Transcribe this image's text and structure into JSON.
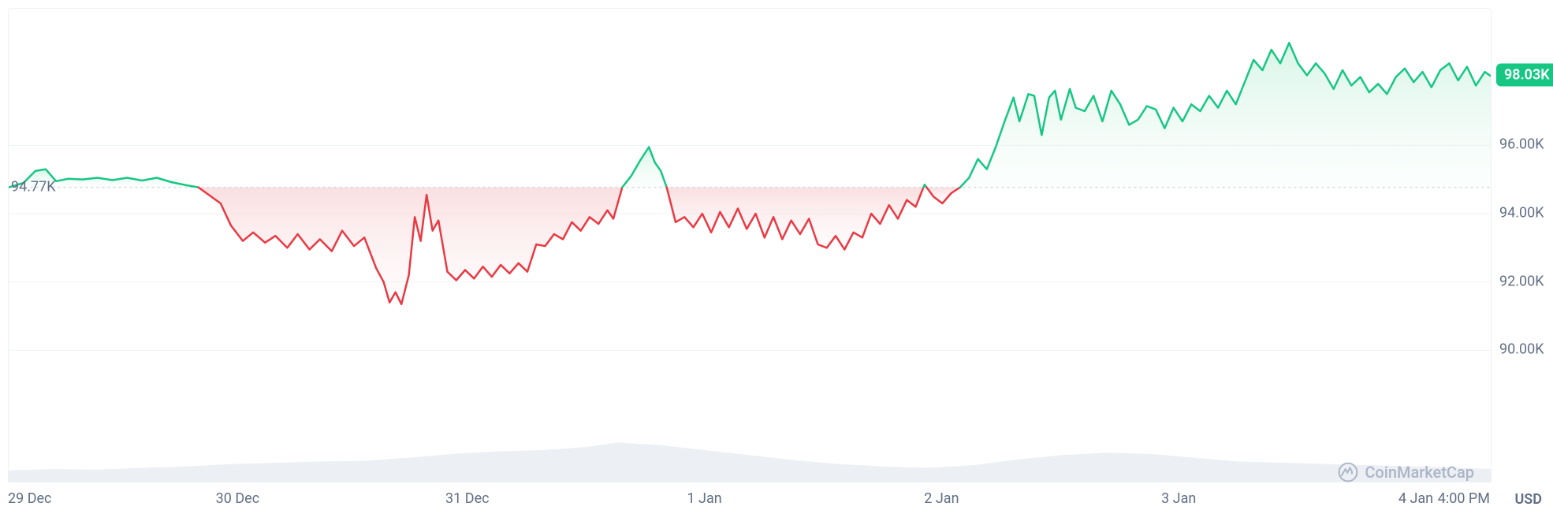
{
  "chart": {
    "type": "area-line",
    "currency_label": "USD",
    "watermark_text": "CoinMarketCap",
    "background_color": "#ffffff",
    "plot_border_color": "#eef0f4",
    "grid_color": "#eff2f5",
    "baseline_dot_color": "#cfd6e4",
    "up_line_color": "#16c784",
    "up_fill_top": "#c7f0dd",
    "up_fill_bottom": "#eefbf4",
    "down_line_color": "#ea3943",
    "down_fill_top": "#f8d2d4",
    "down_fill_bottom": "#fdf1f2",
    "volume_fill": "#eceff4",
    "text_color": "#616e85",
    "line_width": 2.5,
    "y_axis": {
      "min": 88000,
      "max": 100000,
      "ticks": [
        90000,
        92000,
        94000,
        96000
      ],
      "tick_labels": [
        "90.00K",
        "92.00K",
        "94.00K",
        "96.00K"
      ]
    },
    "x_axis": {
      "ticks_t": [
        0,
        0.155,
        0.31,
        0.47,
        0.63,
        0.79,
        0.95,
        1.0
      ],
      "tick_labels": [
        "29 Dec",
        "30 Dec",
        "31 Dec",
        "1 Jan",
        "2 Jan",
        "3 Jan",
        "4 Jan",
        "4:00 PM"
      ]
    },
    "baseline_value": 94770,
    "start_label": "94.77K",
    "end_label": "98.03K",
    "end_value": 98030,
    "price_series": [
      [
        0.0,
        94770
      ],
      [
        0.01,
        94900
      ],
      [
        0.018,
        95250
      ],
      [
        0.025,
        95300
      ],
      [
        0.032,
        94950
      ],
      [
        0.04,
        95020
      ],
      [
        0.05,
        95000
      ],
      [
        0.06,
        95050
      ],
      [
        0.07,
        94980
      ],
      [
        0.08,
        95050
      ],
      [
        0.09,
        94970
      ],
      [
        0.1,
        95050
      ],
      [
        0.11,
        94920
      ],
      [
        0.12,
        94830
      ],
      [
        0.128,
        94770
      ],
      [
        0.135,
        94550
      ],
      [
        0.143,
        94300
      ],
      [
        0.15,
        93650
      ],
      [
        0.158,
        93200
      ],
      [
        0.165,
        93450
      ],
      [
        0.173,
        93150
      ],
      [
        0.18,
        93350
      ],
      [
        0.188,
        93000
      ],
      [
        0.195,
        93400
      ],
      [
        0.203,
        92950
      ],
      [
        0.21,
        93250
      ],
      [
        0.218,
        92900
      ],
      [
        0.225,
        93500
      ],
      [
        0.233,
        93050
      ],
      [
        0.24,
        93300
      ],
      [
        0.248,
        92400
      ],
      [
        0.253,
        92000
      ],
      [
        0.257,
        91400
      ],
      [
        0.261,
        91700
      ],
      [
        0.265,
        91350
      ],
      [
        0.27,
        92200
      ],
      [
        0.274,
        93900
      ],
      [
        0.278,
        93200
      ],
      [
        0.282,
        94550
      ],
      [
        0.286,
        93500
      ],
      [
        0.29,
        93800
      ],
      [
        0.296,
        92300
      ],
      [
        0.302,
        92050
      ],
      [
        0.308,
        92350
      ],
      [
        0.314,
        92100
      ],
      [
        0.32,
        92450
      ],
      [
        0.326,
        92150
      ],
      [
        0.332,
        92500
      ],
      [
        0.338,
        92250
      ],
      [
        0.344,
        92550
      ],
      [
        0.35,
        92300
      ],
      [
        0.356,
        93100
      ],
      [
        0.362,
        93050
      ],
      [
        0.368,
        93400
      ],
      [
        0.374,
        93250
      ],
      [
        0.38,
        93750
      ],
      [
        0.386,
        93500
      ],
      [
        0.392,
        93900
      ],
      [
        0.398,
        93700
      ],
      [
        0.404,
        94100
      ],
      [
        0.408,
        93850
      ],
      [
        0.414,
        94770
      ],
      [
        0.42,
        95100
      ],
      [
        0.426,
        95550
      ],
      [
        0.432,
        95950
      ],
      [
        0.436,
        95500
      ],
      [
        0.44,
        95250
      ],
      [
        0.444,
        94770
      ],
      [
        0.45,
        93750
      ],
      [
        0.456,
        93900
      ],
      [
        0.462,
        93600
      ],
      [
        0.468,
        94000
      ],
      [
        0.474,
        93450
      ],
      [
        0.48,
        94050
      ],
      [
        0.486,
        93600
      ],
      [
        0.492,
        94150
      ],
      [
        0.498,
        93550
      ],
      [
        0.504,
        94000
      ],
      [
        0.51,
        93300
      ],
      [
        0.516,
        93900
      ],
      [
        0.522,
        93250
      ],
      [
        0.528,
        93800
      ],
      [
        0.534,
        93400
      ],
      [
        0.54,
        93850
      ],
      [
        0.546,
        93100
      ],
      [
        0.552,
        93000
      ],
      [
        0.558,
        93350
      ],
      [
        0.564,
        92950
      ],
      [
        0.57,
        93450
      ],
      [
        0.576,
        93300
      ],
      [
        0.582,
        94000
      ],
      [
        0.588,
        93700
      ],
      [
        0.594,
        94250
      ],
      [
        0.6,
        93850
      ],
      [
        0.606,
        94400
      ],
      [
        0.612,
        94200
      ],
      [
        0.618,
        94850
      ],
      [
        0.624,
        94500
      ],
      [
        0.63,
        94300
      ],
      [
        0.636,
        94600
      ],
      [
        0.642,
        94770
      ],
      [
        0.648,
        95050
      ],
      [
        0.654,
        95600
      ],
      [
        0.66,
        95300
      ],
      [
        0.666,
        95950
      ],
      [
        0.672,
        96700
      ],
      [
        0.678,
        97400
      ],
      [
        0.682,
        96700
      ],
      [
        0.688,
        97500
      ],
      [
        0.692,
        97450
      ],
      [
        0.697,
        96300
      ],
      [
        0.702,
        97400
      ],
      [
        0.706,
        97600
      ],
      [
        0.71,
        96750
      ],
      [
        0.716,
        97650
      ],
      [
        0.72,
        97100
      ],
      [
        0.726,
        97000
      ],
      [
        0.732,
        97450
      ],
      [
        0.738,
        96700
      ],
      [
        0.744,
        97600
      ],
      [
        0.75,
        97200
      ],
      [
        0.756,
        96600
      ],
      [
        0.762,
        96750
      ],
      [
        0.768,
        97150
      ],
      [
        0.774,
        97050
      ],
      [
        0.78,
        96500
      ],
      [
        0.786,
        97100
      ],
      [
        0.792,
        96700
      ],
      [
        0.798,
        97200
      ],
      [
        0.804,
        97000
      ],
      [
        0.81,
        97450
      ],
      [
        0.816,
        97100
      ],
      [
        0.822,
        97600
      ],
      [
        0.828,
        97200
      ],
      [
        0.834,
        97850
      ],
      [
        0.84,
        98500
      ],
      [
        0.846,
        98200
      ],
      [
        0.852,
        98800
      ],
      [
        0.858,
        98400
      ],
      [
        0.864,
        99000
      ],
      [
        0.87,
        98400
      ],
      [
        0.876,
        98050
      ],
      [
        0.882,
        98400
      ],
      [
        0.888,
        98100
      ],
      [
        0.894,
        97650
      ],
      [
        0.9,
        98200
      ],
      [
        0.906,
        97750
      ],
      [
        0.912,
        98000
      ],
      [
        0.918,
        97550
      ],
      [
        0.924,
        97800
      ],
      [
        0.93,
        97500
      ],
      [
        0.936,
        98000
      ],
      [
        0.942,
        98250
      ],
      [
        0.948,
        97850
      ],
      [
        0.954,
        98150
      ],
      [
        0.96,
        97700
      ],
      [
        0.966,
        98200
      ],
      [
        0.972,
        98400
      ],
      [
        0.978,
        97900
      ],
      [
        0.984,
        98300
      ],
      [
        0.99,
        97750
      ],
      [
        0.996,
        98150
      ],
      [
        1.0,
        98030
      ]
    ],
    "volume_series": [
      [
        0.0,
        0.18
      ],
      [
        0.03,
        0.2
      ],
      [
        0.06,
        0.19
      ],
      [
        0.09,
        0.22
      ],
      [
        0.12,
        0.24
      ],
      [
        0.15,
        0.28
      ],
      [
        0.18,
        0.3
      ],
      [
        0.21,
        0.32
      ],
      [
        0.24,
        0.33
      ],
      [
        0.27,
        0.38
      ],
      [
        0.3,
        0.44
      ],
      [
        0.33,
        0.48
      ],
      [
        0.36,
        0.5
      ],
      [
        0.39,
        0.55
      ],
      [
        0.41,
        0.62
      ],
      [
        0.44,
        0.58
      ],
      [
        0.47,
        0.5
      ],
      [
        0.5,
        0.42
      ],
      [
        0.53,
        0.34
      ],
      [
        0.56,
        0.28
      ],
      [
        0.59,
        0.24
      ],
      [
        0.62,
        0.22
      ],
      [
        0.65,
        0.26
      ],
      [
        0.68,
        0.35
      ],
      [
        0.71,
        0.42
      ],
      [
        0.74,
        0.46
      ],
      [
        0.77,
        0.44
      ],
      [
        0.8,
        0.38
      ],
      [
        0.83,
        0.32
      ],
      [
        0.86,
        0.3
      ],
      [
        0.89,
        0.28
      ],
      [
        0.92,
        0.26
      ],
      [
        0.95,
        0.24
      ],
      [
        0.98,
        0.22
      ],
      [
        1.0,
        0.2
      ]
    ]
  }
}
